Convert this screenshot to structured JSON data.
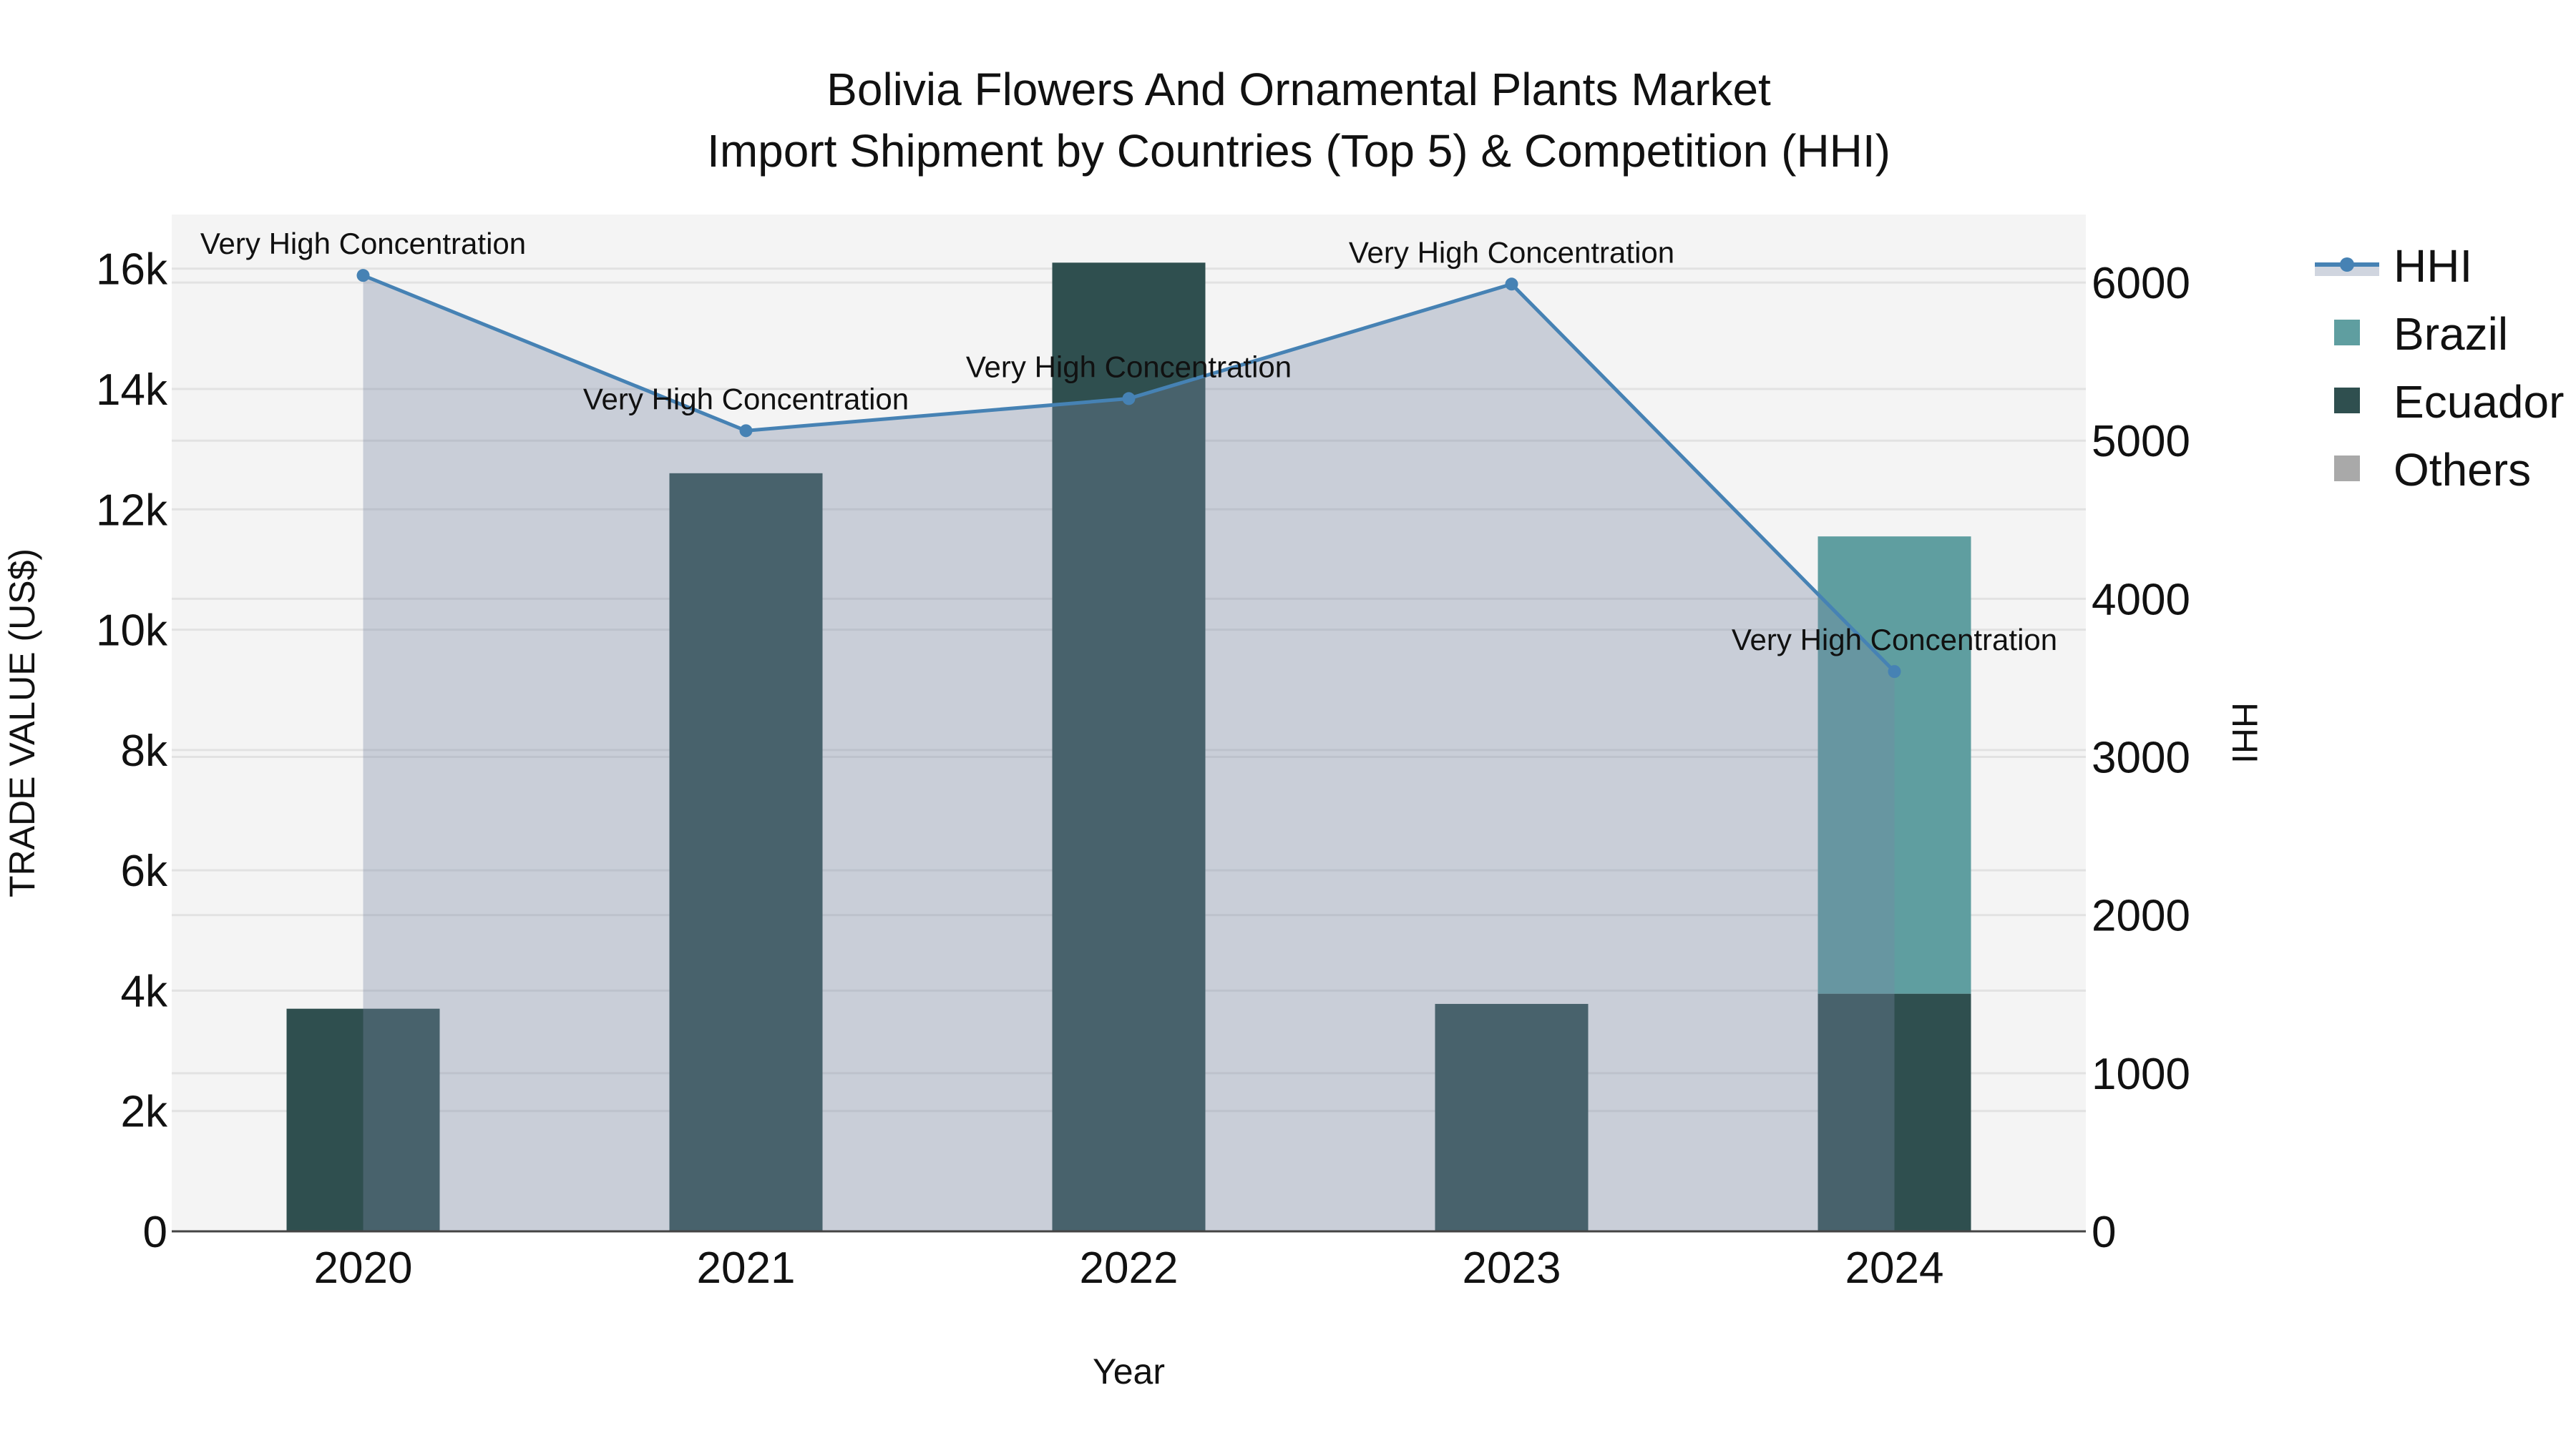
{
  "chart_data": {
    "type": "bar",
    "title": "Bolivia Flowers And Ornamental Plants Market",
    "subtitle": "Import Shipment by Countries (Top 5) & Competition (HHI)",
    "xlabel": "Year",
    "ylabel": "TRADE VALUE (US$)",
    "y2label": "HHI",
    "categories": [
      "2020",
      "2021",
      "2022",
      "2023",
      "2024"
    ],
    "barmode": "stack",
    "ylim": [
      0,
      16900
    ],
    "y2lim": [
      0,
      6430
    ],
    "yticks": [
      0,
      2000,
      4000,
      6000,
      8000,
      10000,
      12000,
      14000,
      16000
    ],
    "ytick_labels": [
      "0",
      "2k",
      "4k",
      "6k",
      "8k",
      "10k",
      "12k",
      "14k",
      "16k"
    ],
    "y2ticks": [
      0,
      1000,
      2000,
      3000,
      4000,
      5000,
      6000
    ],
    "y2tick_labels": [
      "0",
      "1000",
      "2000",
      "3000",
      "4000",
      "5000",
      "6000"
    ],
    "series": [
      {
        "name": "Ecuador",
        "type": "bar",
        "axis": "y",
        "color": "#2f4f4f",
        "values": [
          3700,
          12600,
          16100,
          3780,
          3950
        ]
      },
      {
        "name": "Brazil",
        "type": "bar",
        "axis": "y",
        "color": "#5f9ea0",
        "values": [
          0,
          0,
          0,
          0,
          7600
        ]
      },
      {
        "name": "Others",
        "type": "bar",
        "axis": "y",
        "color": "#a9a9a9",
        "values": [
          0,
          0,
          0,
          0,
          0
        ]
      },
      {
        "name": "HHI",
        "type": "line+area",
        "axis": "y2",
        "color": "#4682b4",
        "fill": "rgba(119,136,163,0.35)",
        "values": [
          6045,
          5063,
          5266,
          5990,
          3540
        ]
      }
    ],
    "annotations": [
      {
        "category": "2020",
        "text": "Very High Concentration"
      },
      {
        "category": "2021",
        "text": "Very High Concentration"
      },
      {
        "category": "2022",
        "text": "Very High Concentration"
      },
      {
        "category": "2023",
        "text": "Very High Concentration"
      },
      {
        "category": "2024",
        "text": "Very High Concentration"
      }
    ],
    "legend": {
      "position": "right-top",
      "items": [
        {
          "name": "HHI",
          "symbol": "line-marker-area",
          "color": "#4682b4"
        },
        {
          "name": "Brazil",
          "symbol": "square",
          "color": "#5f9ea0"
        },
        {
          "name": "Ecuador",
          "symbol": "square",
          "color": "#2f4f4f"
        },
        {
          "name": "Others",
          "symbol": "square",
          "color": "#a9a9a9"
        }
      ]
    },
    "grid": true,
    "plot_bgcolor": "#f4f4f4"
  }
}
